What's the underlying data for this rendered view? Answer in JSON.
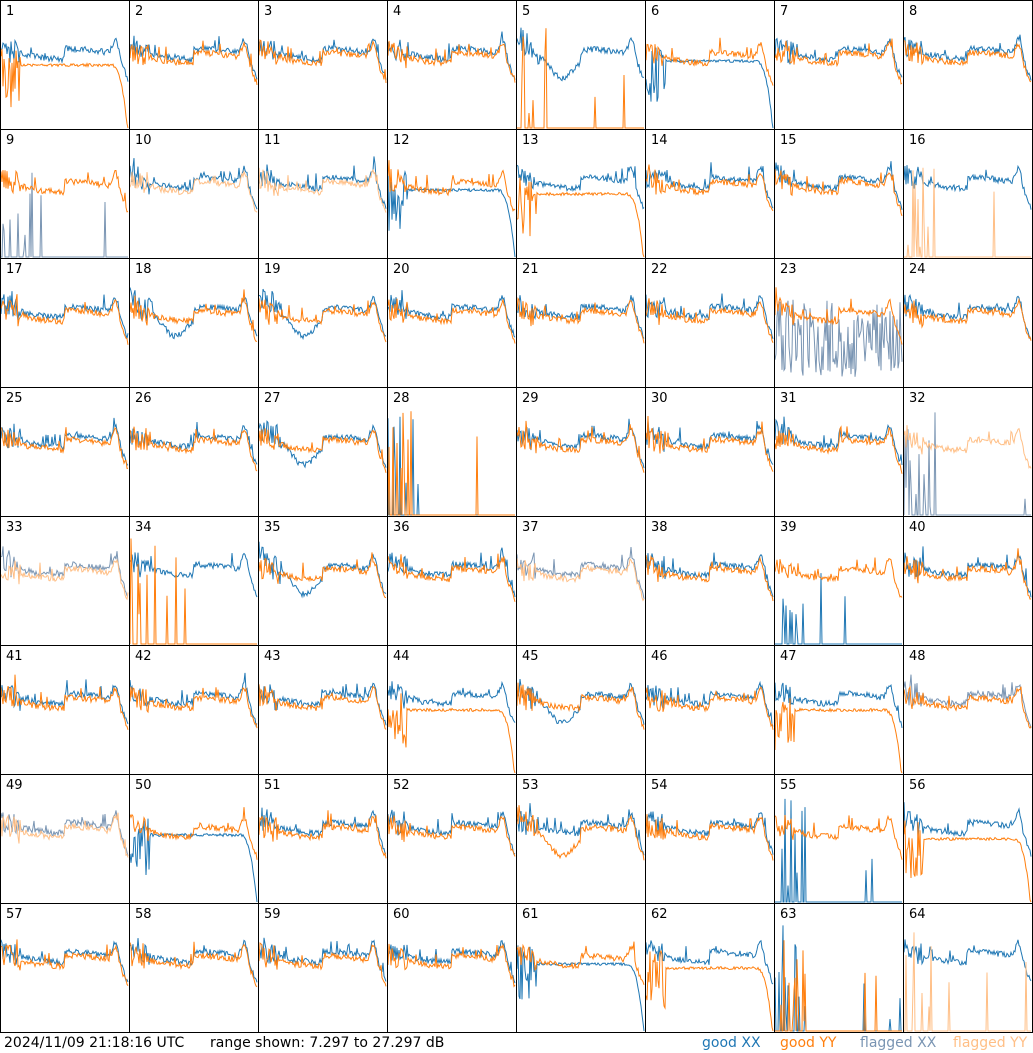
{
  "footer": {
    "timestamp": "2024/11/09 21:18:16 UTC",
    "range_text": "range shown: 7.297 to 27.297 dB"
  },
  "legend": [
    {
      "label": "good XX",
      "color": "#1f77b4"
    },
    {
      "label": "good YY",
      "color": "#ff7f0e"
    },
    {
      "label": "flagged XX",
      "color": "#7a95b3"
    },
    {
      "label": "flagged YY",
      "color": "#ffbf86"
    }
  ],
  "chart_data": {
    "type": "line",
    "title": "",
    "ylim": [
      7.297,
      27.297
    ],
    "grid": false,
    "legend_placement": "bottom-right",
    "panels": [
      {
        "label": "1",
        "xx": "good",
        "yy": "good",
        "xx_shape": "normal",
        "yy_shape": "droop"
      },
      {
        "label": "2",
        "xx": "good",
        "yy": "good",
        "xx_shape": "normal",
        "yy_shape": "normal"
      },
      {
        "label": "3",
        "xx": "good",
        "yy": "good",
        "xx_shape": "normal",
        "yy_shape": "normal"
      },
      {
        "label": "4",
        "xx": "good",
        "yy": "good",
        "xx_shape": "normal",
        "yy_shape": "normal"
      },
      {
        "label": "5",
        "xx": "good",
        "yy": "good",
        "xx_shape": "dip",
        "yy_shape": "dead"
      },
      {
        "label": "6",
        "xx": "good",
        "yy": "good",
        "xx_shape": "droop",
        "yy_shape": "normal"
      },
      {
        "label": "7",
        "xx": "good",
        "yy": "good",
        "xx_shape": "normal",
        "yy_shape": "normal"
      },
      {
        "label": "8",
        "xx": "good",
        "yy": "good",
        "xx_shape": "normal",
        "yy_shape": "normal"
      },
      {
        "label": "9",
        "xx": "flagged",
        "yy": "good",
        "xx_shape": "dead",
        "yy_shape": "normal"
      },
      {
        "label": "10",
        "xx": "good",
        "yy": "flagged",
        "xx_shape": "normal",
        "yy_shape": "normal"
      },
      {
        "label": "11",
        "xx": "good",
        "yy": "flagged",
        "xx_shape": "normal",
        "yy_shape": "normal"
      },
      {
        "label": "12",
        "xx": "good",
        "yy": "good",
        "xx_shape": "droop",
        "yy_shape": "normal"
      },
      {
        "label": "13",
        "xx": "good",
        "yy": "good",
        "xx_shape": "normal",
        "yy_shape": "droop"
      },
      {
        "label": "14",
        "xx": "good",
        "yy": "good",
        "xx_shape": "normal",
        "yy_shape": "normal"
      },
      {
        "label": "15",
        "xx": "good",
        "yy": "good",
        "xx_shape": "normal",
        "yy_shape": "normal"
      },
      {
        "label": "16",
        "xx": "good",
        "yy": "flagged",
        "xx_shape": "normal",
        "yy_shape": "dead"
      },
      {
        "label": "17",
        "xx": "good",
        "yy": "good",
        "xx_shape": "normal",
        "yy_shape": "normal"
      },
      {
        "label": "18",
        "xx": "good",
        "yy": "good",
        "xx_shape": "dip",
        "yy_shape": "normal"
      },
      {
        "label": "19",
        "xx": "good",
        "yy": "good",
        "xx_shape": "dip",
        "yy_shape": "normal"
      },
      {
        "label": "20",
        "xx": "good",
        "yy": "good",
        "xx_shape": "normal",
        "yy_shape": "normal"
      },
      {
        "label": "21",
        "xx": "good",
        "yy": "good",
        "xx_shape": "normal",
        "yy_shape": "normal"
      },
      {
        "label": "22",
        "xx": "good",
        "yy": "good",
        "xx_shape": "normal",
        "yy_shape": "normal"
      },
      {
        "label": "23",
        "xx": "flagged",
        "yy": "good",
        "xx_shape": "noisy",
        "yy_shape": "normal"
      },
      {
        "label": "24",
        "xx": "good",
        "yy": "good",
        "xx_shape": "normal",
        "yy_shape": "normal"
      },
      {
        "label": "25",
        "xx": "good",
        "yy": "good",
        "xx_shape": "normal",
        "yy_shape": "normal"
      },
      {
        "label": "26",
        "xx": "good",
        "yy": "good",
        "xx_shape": "normal",
        "yy_shape": "normal"
      },
      {
        "label": "27",
        "xx": "good",
        "yy": "good",
        "xx_shape": "dip",
        "yy_shape": "normal"
      },
      {
        "label": "28",
        "xx": "good",
        "yy": "good",
        "xx_shape": "dead",
        "yy_shape": "dead"
      },
      {
        "label": "29",
        "xx": "good",
        "yy": "good",
        "xx_shape": "normal",
        "yy_shape": "normal"
      },
      {
        "label": "30",
        "xx": "good",
        "yy": "good",
        "xx_shape": "normal",
        "yy_shape": "normal"
      },
      {
        "label": "31",
        "xx": "good",
        "yy": "good",
        "xx_shape": "normal",
        "yy_shape": "normal"
      },
      {
        "label": "32",
        "xx": "flagged",
        "yy": "flagged",
        "xx_shape": "dead",
        "yy_shape": "normal"
      },
      {
        "label": "33",
        "xx": "flagged",
        "yy": "flagged",
        "xx_shape": "normal",
        "yy_shape": "normal"
      },
      {
        "label": "34",
        "xx": "good",
        "yy": "good",
        "xx_shape": "normal",
        "yy_shape": "dead"
      },
      {
        "label": "35",
        "xx": "good",
        "yy": "good",
        "xx_shape": "dip",
        "yy_shape": "normal"
      },
      {
        "label": "36",
        "xx": "good",
        "yy": "good",
        "xx_shape": "normal",
        "yy_shape": "normal"
      },
      {
        "label": "37",
        "xx": "flagged",
        "yy": "flagged",
        "xx_shape": "normal",
        "yy_shape": "normal"
      },
      {
        "label": "38",
        "xx": "good",
        "yy": "good",
        "xx_shape": "normal",
        "yy_shape": "normal"
      },
      {
        "label": "39",
        "xx": "good",
        "yy": "good",
        "xx_shape": "dead",
        "yy_shape": "normal"
      },
      {
        "label": "40",
        "xx": "good",
        "yy": "good",
        "xx_shape": "normal",
        "yy_shape": "normal"
      },
      {
        "label": "41",
        "xx": "good",
        "yy": "good",
        "xx_shape": "normal",
        "yy_shape": "normal"
      },
      {
        "label": "42",
        "xx": "good",
        "yy": "good",
        "xx_shape": "normal",
        "yy_shape": "normal"
      },
      {
        "label": "43",
        "xx": "good",
        "yy": "good",
        "xx_shape": "normal",
        "yy_shape": "normal"
      },
      {
        "label": "44",
        "xx": "good",
        "yy": "good",
        "xx_shape": "normal",
        "yy_shape": "droop"
      },
      {
        "label": "45",
        "xx": "good",
        "yy": "good",
        "xx_shape": "dip",
        "yy_shape": "normal"
      },
      {
        "label": "46",
        "xx": "good",
        "yy": "good",
        "xx_shape": "normal",
        "yy_shape": "normal"
      },
      {
        "label": "47",
        "xx": "good",
        "yy": "good",
        "xx_shape": "normal",
        "yy_shape": "droop"
      },
      {
        "label": "48",
        "xx": "flagged",
        "yy": "good",
        "xx_shape": "normal",
        "yy_shape": "normal"
      },
      {
        "label": "49",
        "xx": "flagged",
        "yy": "flagged",
        "xx_shape": "normal",
        "yy_shape": "normal"
      },
      {
        "label": "50",
        "xx": "good",
        "yy": "good",
        "xx_shape": "droop",
        "yy_shape": "normal"
      },
      {
        "label": "51",
        "xx": "good",
        "yy": "good",
        "xx_shape": "normal",
        "yy_shape": "normal"
      },
      {
        "label": "52",
        "xx": "good",
        "yy": "good",
        "xx_shape": "normal",
        "yy_shape": "normal"
      },
      {
        "label": "53",
        "xx": "good",
        "yy": "good",
        "xx_shape": "normal",
        "yy_shape": "dip"
      },
      {
        "label": "54",
        "xx": "good",
        "yy": "good",
        "xx_shape": "normal",
        "yy_shape": "normal"
      },
      {
        "label": "55",
        "xx": "good",
        "yy": "good",
        "xx_shape": "dead",
        "yy_shape": "normal"
      },
      {
        "label": "56",
        "xx": "good",
        "yy": "good",
        "xx_shape": "normal",
        "yy_shape": "droop"
      },
      {
        "label": "57",
        "xx": "good",
        "yy": "good",
        "xx_shape": "normal",
        "yy_shape": "normal"
      },
      {
        "label": "58",
        "xx": "good",
        "yy": "good",
        "xx_shape": "normal",
        "yy_shape": "normal"
      },
      {
        "label": "59",
        "xx": "good",
        "yy": "good",
        "xx_shape": "normal",
        "yy_shape": "normal"
      },
      {
        "label": "60",
        "xx": "good",
        "yy": "good",
        "xx_shape": "normal",
        "yy_shape": "normal"
      },
      {
        "label": "61",
        "xx": "good",
        "yy": "good",
        "xx_shape": "droop",
        "yy_shape": "normal"
      },
      {
        "label": "62",
        "xx": "good",
        "yy": "good",
        "xx_shape": "normal",
        "yy_shape": "droop"
      },
      {
        "label": "63",
        "xx": "good",
        "yy": "good",
        "xx_shape": "dead",
        "yy_shape": "dead"
      },
      {
        "label": "64",
        "xx": "good",
        "yy": "flagged",
        "xx_shape": "normal",
        "yy_shape": "dead"
      }
    ]
  }
}
